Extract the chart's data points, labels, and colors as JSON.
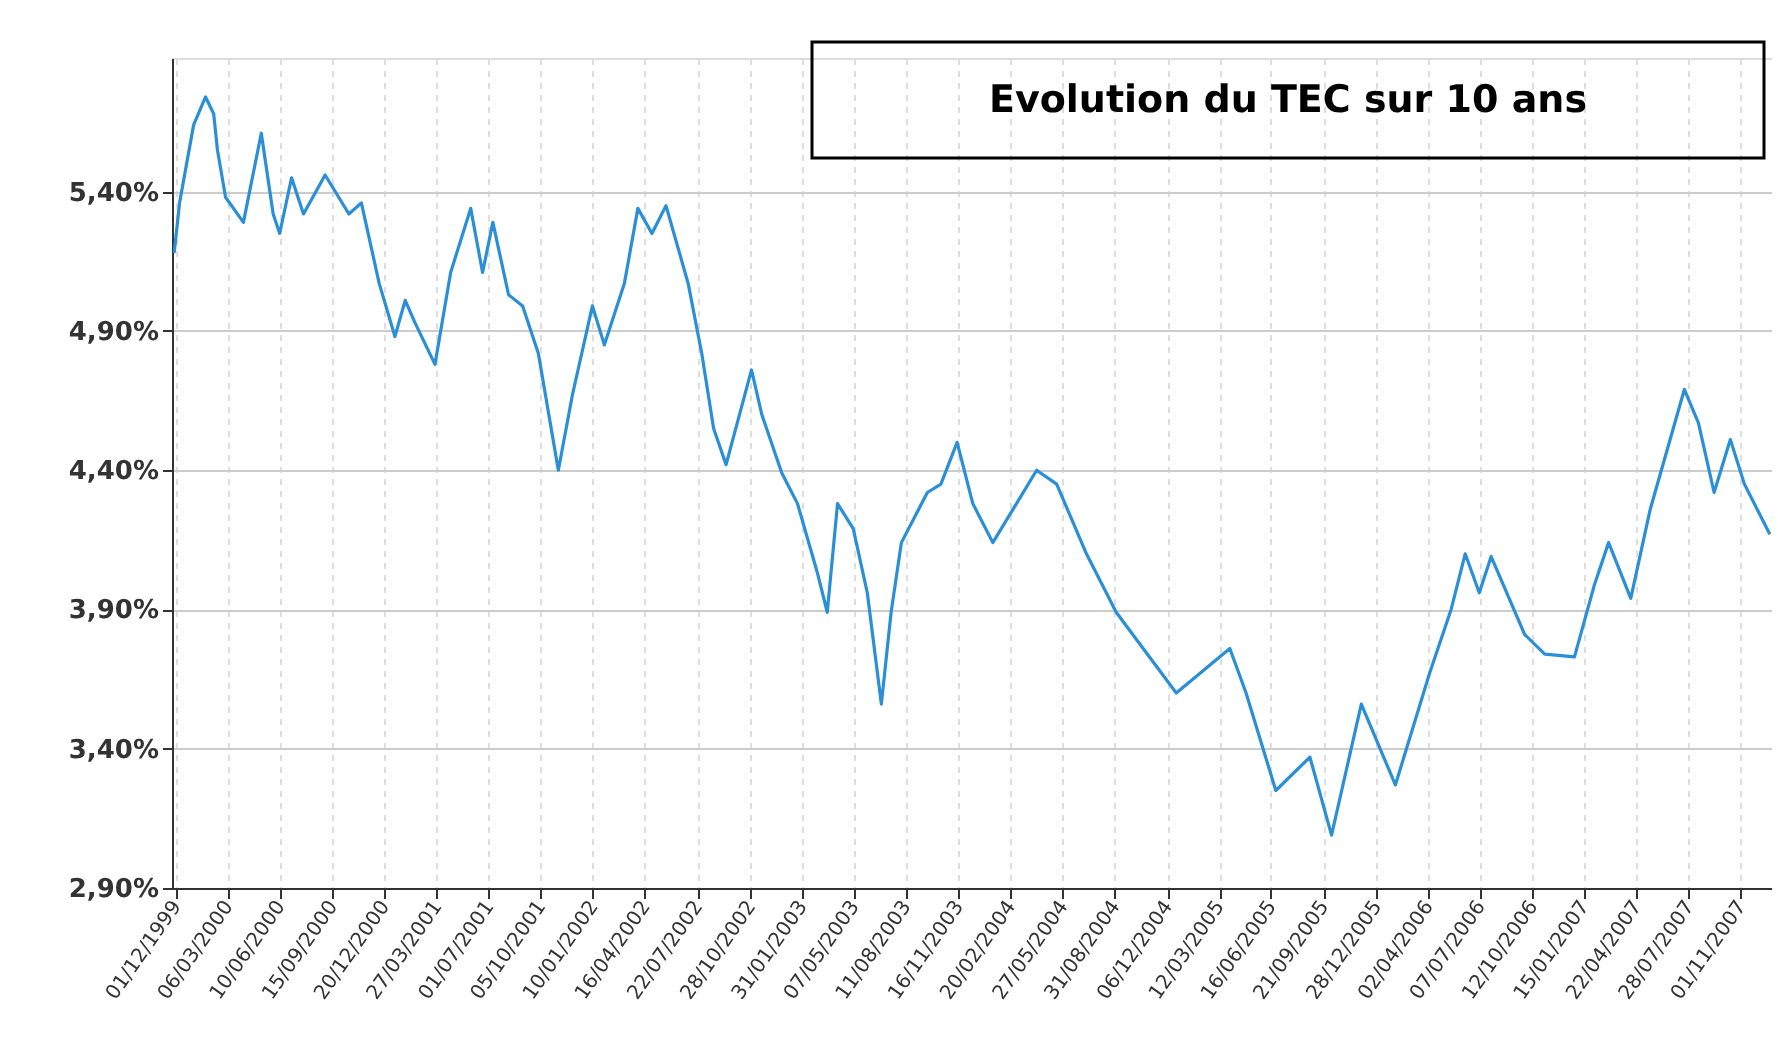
{
  "chart_data": {
    "type": "line",
    "title": "Evolution du TEC sur 10 ans",
    "x": [
      "1999-11-28",
      "1999-12-08",
      "2000-01-03",
      "2000-01-25",
      "2000-02-09",
      "2000-02-16",
      "2000-03-02",
      "2000-04-04",
      "2000-05-07",
      "2000-05-29",
      "2000-06-10",
      "2000-07-02",
      "2000-07-24",
      "2000-09-02",
      "2000-10-16",
      "2000-11-08",
      "2000-12-11",
      "2001-01-09",
      "2001-01-28",
      "2001-02-15",
      "2001-03-24",
      "2001-04-22",
      "2001-05-29",
      "2001-06-20",
      "2001-07-09",
      "2001-08-07",
      "2001-09-02",
      "2001-10-01",
      "2001-11-07",
      "2001-12-03",
      "2002-01-09",
      "2002-01-31",
      "2002-03-09",
      "2002-04-03",
      "2002-04-29",
      "2002-05-25",
      "2002-07-05",
      "2002-07-30",
      "2002-08-21",
      "2002-09-13",
      "2002-10-30",
      "2002-11-18",
      "2002-12-25",
      "2003-01-23",
      "2003-03-01",
      "2003-03-19",
      "2003-04-07",
      "2003-05-06",
      "2003-06-01",
      "2003-06-27",
      "2003-07-15",
      "2003-08-03",
      "2003-09-20",
      "2003-10-15",
      "2003-11-14",
      "2003-12-13",
      "2004-01-19",
      "2004-04-09",
      "2004-05-16",
      "2004-07-10",
      "2004-09-03",
      "2004-12-23",
      "2005-04-01",
      "2005-05-01",
      "2005-06-25",
      "2005-08-27",
      "2005-10-06",
      "2005-11-30",
      "2006-02-01",
      "2006-04-05",
      "2006-05-15",
      "2006-06-10",
      "2006-07-06",
      "2006-07-28",
      "2006-09-28",
      "2006-11-04",
      "2006-12-29",
      "2007-02-04",
      "2007-03-02",
      "2007-04-12",
      "2007-05-18",
      "2007-07-20",
      "2007-08-15",
      "2007-09-13",
      "2007-10-13",
      "2007-11-08",
      "2007-12-25"
    ],
    "series": [
      {
        "color": "#2a8fd6",
        "values": [
          5.18,
          5.36,
          5.64,
          5.74,
          5.68,
          5.55,
          5.38,
          5.29,
          5.61,
          5.32,
          5.25,
          5.45,
          5.32,
          5.46,
          5.32,
          5.36,
          5.07,
          4.88,
          5.01,
          4.93,
          4.78,
          5.11,
          5.34,
          5.11,
          5.29,
          5.03,
          4.99,
          4.82,
          4.4,
          4.67,
          4.99,
          4.85,
          5.07,
          5.34,
          5.25,
          5.35,
          5.07,
          4.82,
          4.55,
          4.42,
          4.76,
          4.6,
          4.39,
          4.28,
          4.03,
          3.89,
          4.28,
          4.19,
          3.96,
          3.56,
          3.89,
          4.14,
          4.32,
          4.35,
          4.5,
          4.28,
          4.14,
          4.4,
          4.35,
          4.1,
          3.89,
          3.6,
          3.76,
          3.6,
          3.25,
          3.37,
          3.09,
          3.56,
          3.27,
          3.67,
          3.9,
          4.1,
          3.96,
          4.09,
          3.81,
          3.74,
          3.73,
          3.99,
          4.14,
          3.94,
          4.26,
          4.69,
          4.57,
          4.32,
          4.51,
          4.35,
          4.17
        ]
      }
    ],
    "xlim": [
      "1999-11-24",
      "2007-12-29"
    ],
    "xticks": [
      {
        "value": "1999-12-01",
        "label": "01/12/1999"
      },
      {
        "value": "2000-03-06",
        "label": "06/03/2000"
      },
      {
        "value": "2000-06-10",
        "label": "10/06/2000"
      },
      {
        "value": "2000-09-15",
        "label": "15/09/2000"
      },
      {
        "value": "2000-12-20",
        "label": "20/12/2000"
      },
      {
        "value": "2001-03-27",
        "label": "27/03/2001"
      },
      {
        "value": "2001-07-01",
        "label": "01/07/2001"
      },
      {
        "value": "2001-10-05",
        "label": "05/10/2001"
      },
      {
        "value": "2002-01-10",
        "label": "10/01/2002"
      },
      {
        "value": "2002-04-16",
        "label": "16/04/2002"
      },
      {
        "value": "2002-07-22",
        "label": "22/07/2002"
      },
      {
        "value": "2002-10-28",
        "label": "28/10/2002"
      },
      {
        "value": "2003-01-31",
        "label": "31/01/2003"
      },
      {
        "value": "2003-05-07",
        "label": "07/05/2003"
      },
      {
        "value": "2003-08-11",
        "label": "11/08/2003"
      },
      {
        "value": "2003-11-16",
        "label": "16/11/2003"
      },
      {
        "value": "2004-02-20",
        "label": "20/02/2004"
      },
      {
        "value": "2004-05-27",
        "label": "27/05/2004"
      },
      {
        "value": "2004-08-31",
        "label": "31/08/2004"
      },
      {
        "value": "2004-12-06",
        "label": "06/12/2004"
      },
      {
        "value": "2005-03-12",
        "label": "12/03/2005"
      },
      {
        "value": "2005-06-16",
        "label": "16/06/2005"
      },
      {
        "value": "2005-09-21",
        "label": "21/09/2005"
      },
      {
        "value": "2005-12-28",
        "label": "28/12/2005"
      },
      {
        "value": "2006-04-02",
        "label": "02/04/2006"
      },
      {
        "value": "2006-07-07",
        "label": "07/07/2006"
      },
      {
        "value": "2006-10-12",
        "label": "12/10/2006"
      },
      {
        "value": "2007-01-15",
        "label": "15/01/2007"
      },
      {
        "value": "2007-04-22",
        "label": "22/04/2007"
      },
      {
        "value": "2007-07-28",
        "label": "28/07/2007"
      },
      {
        "value": "2007-11-01",
        "label": "01/11/2007"
      }
    ],
    "ylim": [
      2.9,
      5.88
    ],
    "yticks": [
      {
        "value": 2.9,
        "label": "2,90%"
      },
      {
        "value": 3.4,
        "label": "3,40%"
      },
      {
        "value": 3.9,
        "label": "3,90%"
      },
      {
        "value": 4.4,
        "label": "4,40%"
      },
      {
        "value": 4.9,
        "label": "4,90%"
      },
      {
        "value": 5.4,
        "label": "5,40%"
      }
    ],
    "grid": true,
    "legend": false,
    "marker": "none",
    "line_style": "solid"
  }
}
